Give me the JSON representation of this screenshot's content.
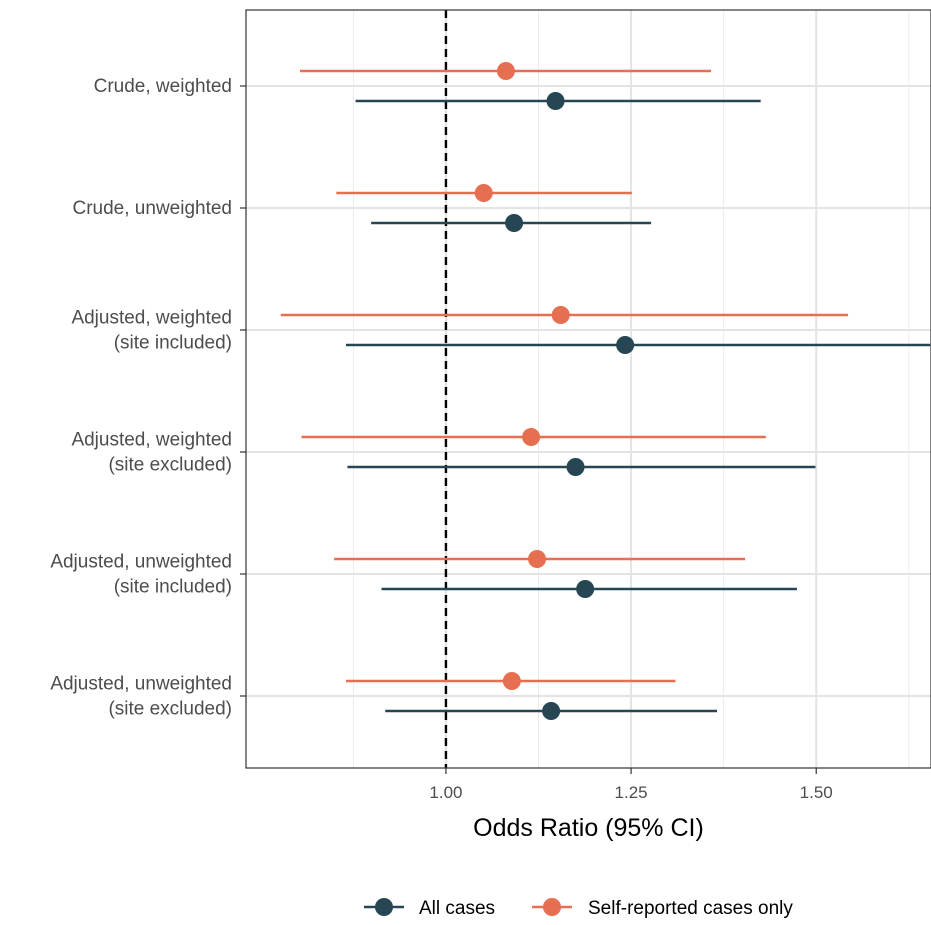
{
  "chart_data": {
    "type": "forest",
    "xlabel": "Odds Ratio (95% CI)",
    "x_ticks": [
      1.0,
      1.25,
      1.5
    ],
    "x_tick_labels": [
      "1.00",
      "1.25",
      "1.50"
    ],
    "x_range": [
      0.73,
      1.655
    ],
    "reference_line": 1.0,
    "grid": true,
    "legend_position": "bottom",
    "categories": [
      [
        "Crude, weighted"
      ],
      [
        "Crude, unweighted"
      ],
      [
        "Adjusted, weighted",
        "(site included)"
      ],
      [
        "Adjusted, weighted",
        "(site excluded)"
      ],
      [
        "Adjusted, unweighted",
        "(site included)"
      ],
      [
        "Adjusted, unweighted",
        "(site excluded)"
      ]
    ],
    "series": [
      {
        "name": "All cases",
        "color": "#264653",
        "estimates": [
          1.148,
          1.092,
          1.242,
          1.175,
          1.188,
          1.142
        ],
        "lower": [
          0.878,
          0.899,
          0.865,
          0.867,
          0.913,
          0.918
        ],
        "upper": [
          1.425,
          1.277,
          1.654,
          1.499,
          1.474,
          1.366
        ]
      },
      {
        "name": "Self-reported cases only",
        "color": "#e76f51",
        "estimates": [
          1.081,
          1.051,
          1.155,
          1.115,
          1.123,
          1.089
        ],
        "lower": [
          0.803,
          0.852,
          0.777,
          0.805,
          0.849,
          0.865
        ],
        "upper": [
          1.358,
          1.251,
          1.543,
          1.432,
          1.404,
          1.31
        ]
      }
    ]
  }
}
